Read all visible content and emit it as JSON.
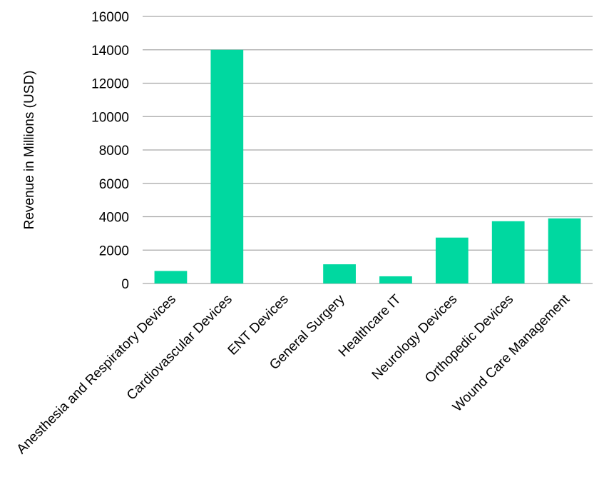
{
  "chart_data": {
    "type": "bar",
    "title": "",
    "xlabel": "",
    "ylabel": "Revenue in Millions (USD)",
    "categories": [
      "Anesthesia and Respiratory Devices",
      "Cardiovascular Devices",
      "ENT Devices",
      "General Surgery",
      "Healthcare IT",
      "Neurology Devices",
      "Orthopedic Devices",
      "Wound Care Management"
    ],
    "values": [
      750,
      14000,
      0,
      1150,
      430,
      2750,
      3730,
      3900
    ],
    "ylim": [
      0,
      16000
    ],
    "yticks": [
      0,
      2000,
      4000,
      6000,
      8000,
      10000,
      12000,
      14000,
      16000
    ],
    "grid": true,
    "legend": "none",
    "bar_color": "#00d8a0"
  }
}
